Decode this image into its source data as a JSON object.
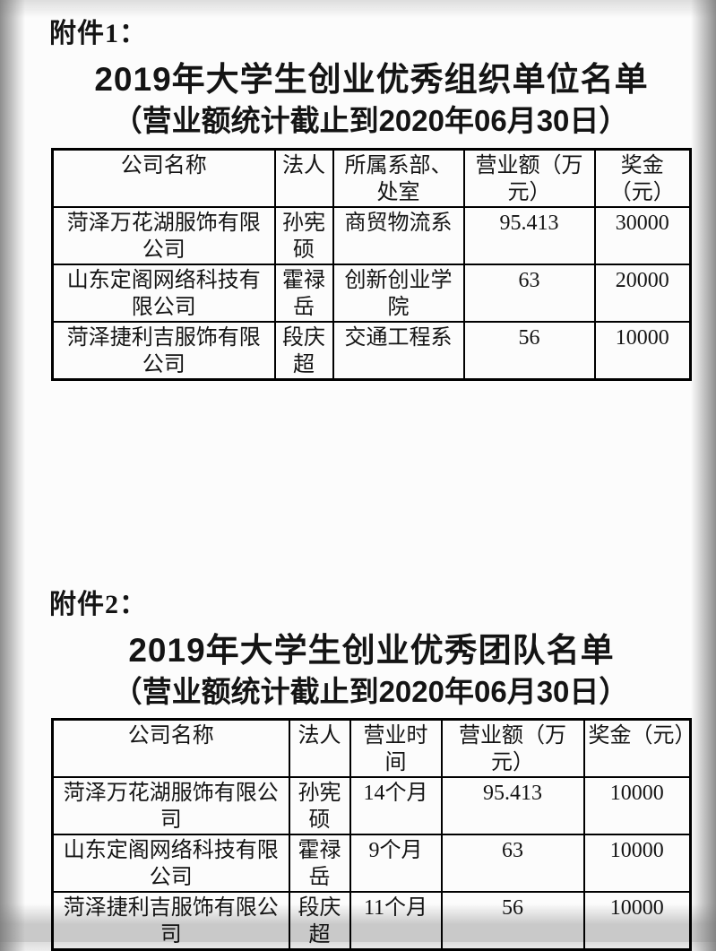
{
  "colors": {
    "page_background": "#fcfcfc",
    "text": "#141414",
    "table_border": "#000000",
    "edge_vignette": "#8c8c8c"
  },
  "sections": [
    {
      "attachment_label": "附件1：",
      "title": "2019年大学生创业优秀组织单位名单",
      "subtitle": "（营业额统计截止到2020年06月30日）",
      "table": {
        "headers": [
          "公司名称",
          "法人",
          "所属系部、处室",
          "营业额（万元）",
          "奖金（元）"
        ],
        "rows": [
          [
            "菏泽万花湖服饰有限公司",
            "孙宪硕",
            "商贸物流系",
            "95.413",
            "30000"
          ],
          [
            "山东定阁网络科技有限公司",
            "霍禄岳",
            "创新创业学院",
            "63",
            "20000"
          ],
          [
            "菏泽捷利吉服饰有限公司",
            "段庆超",
            "交通工程系",
            "56",
            "10000"
          ]
        ]
      }
    },
    {
      "attachment_label": "附件2：",
      "title": "2019年大学生创业优秀团队名单",
      "subtitle": "（营业额统计截止到2020年06月30日）",
      "table": {
        "headers": [
          "公司名称",
          "法人",
          "营业时间",
          "营业额（万元）",
          "奖金（元）"
        ],
        "rows": [
          [
            "菏泽万花湖服饰有限公司",
            "孙宪硕",
            "14个月",
            "95.413",
            "10000"
          ],
          [
            "山东定阁网络科技有限公司",
            "霍禄岳",
            "9个月",
            "63",
            "10000"
          ],
          [
            "菏泽捷利吉服饰有限公司",
            "段庆超",
            "11个月",
            "56",
            "10000"
          ]
        ]
      }
    }
  ]
}
